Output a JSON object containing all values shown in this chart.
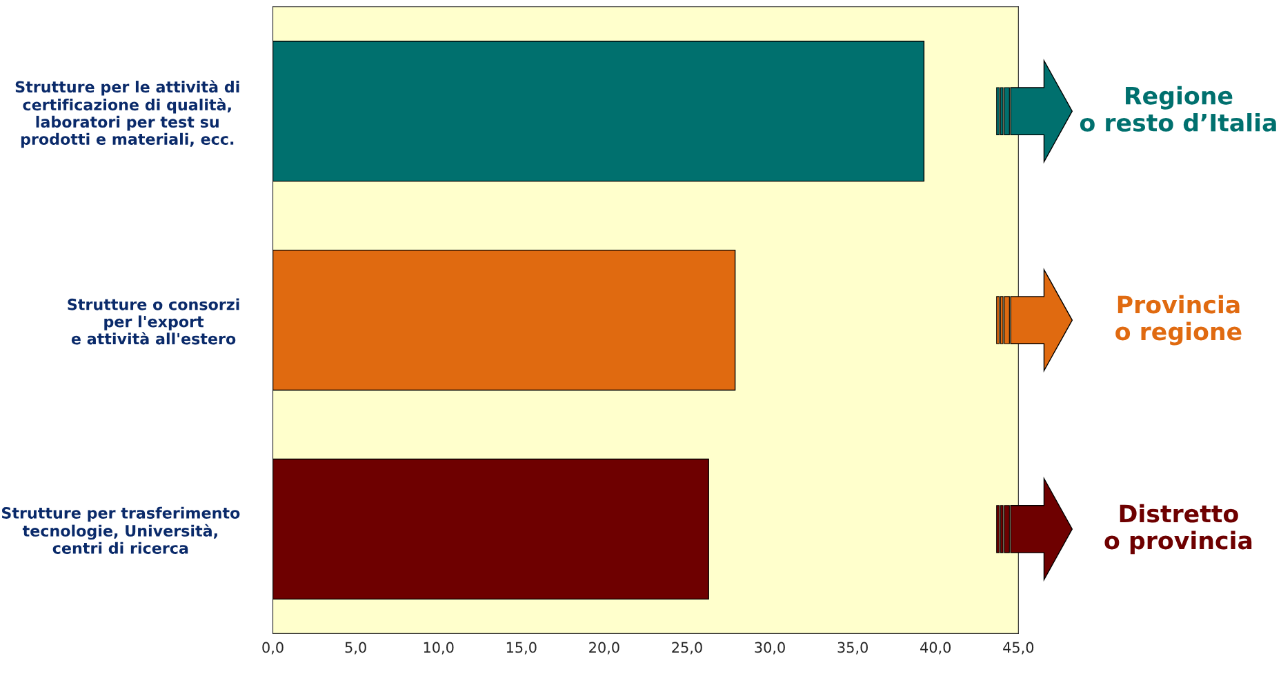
{
  "chart_data": {
    "type": "bar",
    "orientation": "horizontal",
    "categories": [
      "Strutture per le attività di\ncertificazione di qualità,\nlaboratori per test su\nprodotti e materiali, ecc.",
      "Strutture o consorzi\nper l'export\ne attività all'estero",
      "Strutture per trasferimento\ntecnologie, Università,\ncentri di ricerca"
    ],
    "values": [
      39.3,
      27.9,
      26.3
    ],
    "colors": [
      "#00706e",
      "#e06a10",
      "#6e0000"
    ],
    "xlim": [
      0,
      45
    ],
    "xticks": [
      {
        "value": 0,
        "label": "0,0"
      },
      {
        "value": 5,
        "label": "5,0"
      },
      {
        "value": 10,
        "label": "10,0"
      },
      {
        "value": 15,
        "label": "15,0"
      },
      {
        "value": 20,
        "label": "20,0"
      },
      {
        "value": 25,
        "label": "25,0"
      },
      {
        "value": 30,
        "label": "30,0"
      },
      {
        "value": 35,
        "label": "35,0"
      },
      {
        "value": 40,
        "label": "40,0"
      },
      {
        "value": 45,
        "label": "45,0"
      }
    ],
    "annotations": [
      "Regione\no resto d’Italia",
      "Provincia\no regione",
      "Distretto\no provincia"
    ],
    "grid": false,
    "legend": false
  }
}
